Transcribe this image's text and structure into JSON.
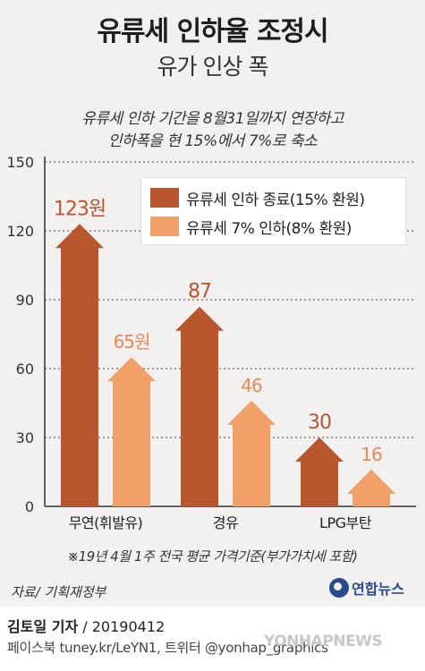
{
  "header": {
    "title": "유류세 인하율 조정시",
    "subtitle": "유가 인상 폭"
  },
  "notes": {
    "line1": "유류세 인하 기간을 8월31일까지 연장하고",
    "line2": "인하폭을 현 15%에서 7%로 축소"
  },
  "chart_data": {
    "type": "bar",
    "categories": [
      "무연(휘발유)",
      "경유",
      "LPG부탄"
    ],
    "series": [
      {
        "name": "유류세 인하 종료(15% 환원)",
        "values": [
          123,
          87,
          30
        ],
        "labels": [
          "123원",
          "87",
          "30"
        ],
        "color": "#b8562e"
      },
      {
        "name": "유류세 7% 인하(8% 환원)",
        "values": [
          65,
          46,
          16
        ],
        "labels": [
          "65원",
          "46",
          "16"
        ],
        "color": "#f2a06a"
      }
    ],
    "ylim": [
      0,
      150
    ],
    "yticks": [
      "0",
      "30",
      "60",
      "90",
      "120",
      "150"
    ],
    "ytick_values": [
      0,
      30,
      60,
      90,
      120,
      150
    ],
    "grid": true,
    "legend_position": "top-right",
    "label_colors": [
      "#b8562e",
      "#e8875a"
    ],
    "tick_color": "#333333"
  },
  "footnote": "※19년 4월 1주 전국 평균 가격기준(부가가치세 포함)",
  "source": "자료/ 기획재정부",
  "logo_text": "연합뉴스",
  "credit": {
    "reporter": "김토일 기자",
    "date": " / 20190412",
    "social": "페이스북 tuney.kr/LeYN1, 트위터 @yonhap_graphics"
  },
  "watermark": "YONHAPNEWS"
}
